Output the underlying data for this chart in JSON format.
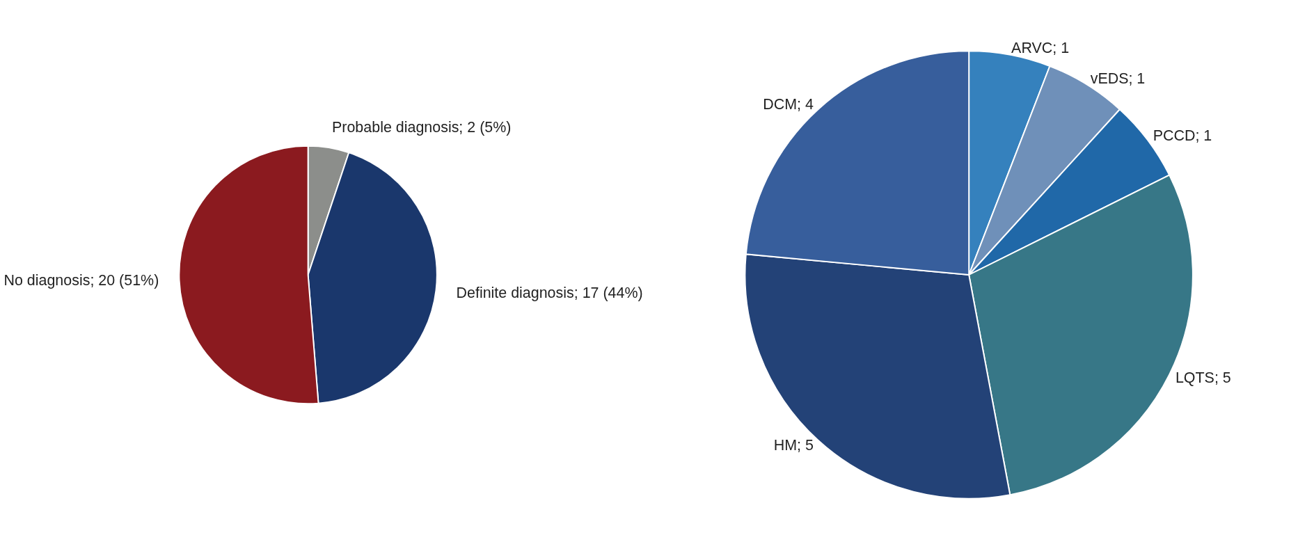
{
  "chart_data": [
    {
      "type": "pie",
      "categories": [
        "Probable diagnosis",
        "Definite diagnosis",
        "No diagnosis"
      ],
      "values": [
        2,
        17,
        20
      ],
      "colors": [
        "#8c8e8b",
        "#1a376c",
        "#8b1a1f"
      ],
      "value_labels": [
        "2 (5%)",
        "17 (44%)",
        "20 (51%)"
      ],
      "legend": false
    },
    {
      "type": "pie",
      "categories": [
        "ARVC",
        "vEDS",
        "PCCD",
        "LQTS",
        "HM",
        "DCM"
      ],
      "values": [
        1,
        1,
        1,
        5,
        5,
        4
      ],
      "colors": [
        "#3581bd",
        "#6f90b9",
        "#2068a8",
        "#377787",
        "#234277",
        "#375e9c"
      ],
      "value_labels": [
        "1",
        "1",
        "1",
        "5",
        "5",
        "4"
      ],
      "legend": false
    }
  ]
}
